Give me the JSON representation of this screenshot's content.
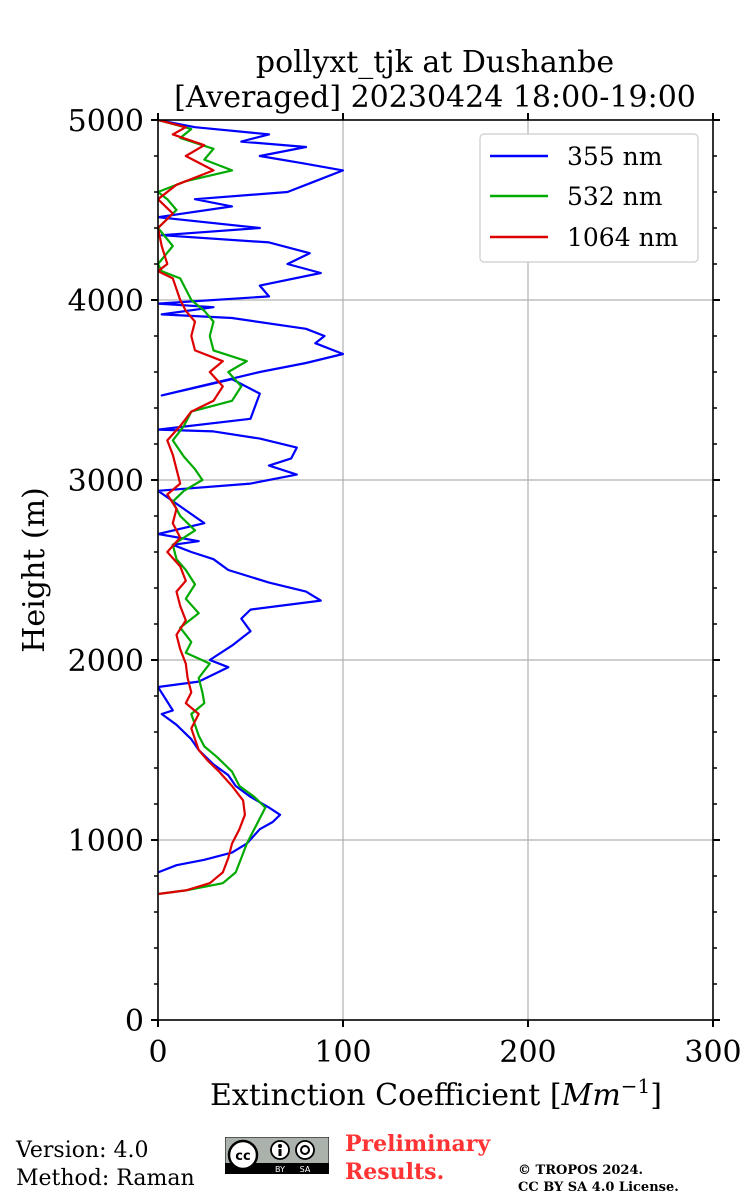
{
  "chart_data": {
    "type": "line",
    "title_line1": "pollyxt_tjk at Dushanbe",
    "title_line2": "[Averaged] 20230424 18:00-19:00",
    "xlabel": "Extinction Coefficient [",
    "xlabel_unit": "Mm",
    "xlabel_exp": "−1",
    "xlabel_close": "]",
    "ylabel": "Height (m)",
    "xlim": [
      0,
      300
    ],
    "ylim": [
      0,
      5000
    ],
    "x_ticks": [
      "0",
      "100",
      "200",
      "300"
    ],
    "x_tick_values": [
      0,
      100,
      200,
      300
    ],
    "y_ticks": [
      "0",
      "1000",
      "2000",
      "3000",
      "4000",
      "5000"
    ],
    "y_tick_values": [
      0,
      1000,
      2000,
      3000,
      4000,
      5000
    ],
    "grid": true,
    "legend_position": "top-right",
    "series": [
      {
        "name": "355 nm",
        "color": "#0000ff",
        "points": [
          [
            0,
            820
          ],
          [
            10,
            860
          ],
          [
            25,
            890
          ],
          [
            40,
            930
          ],
          [
            48,
            980
          ],
          [
            55,
            1060
          ],
          [
            62,
            1100
          ],
          [
            66,
            1140
          ],
          [
            60,
            1180
          ],
          [
            50,
            1240
          ],
          [
            42,
            1300
          ],
          [
            38,
            1360
          ],
          [
            30,
            1420
          ],
          [
            22,
            1500
          ],
          [
            18,
            1560
          ],
          [
            10,
            1640
          ],
          [
            2,
            1700
          ],
          [
            8,
            1720
          ],
          [
            0,
            1850
          ],
          [
            22,
            1880
          ],
          [
            38,
            1960
          ],
          [
            28,
            2000
          ],
          [
            40,
            2080
          ],
          [
            50,
            2160
          ],
          [
            45,
            2230
          ],
          [
            50,
            2280
          ],
          [
            88,
            2330
          ],
          [
            80,
            2380
          ],
          [
            60,
            2430
          ],
          [
            38,
            2500
          ],
          [
            30,
            2560
          ],
          [
            18,
            2600
          ],
          [
            8,
            2640
          ],
          [
            22,
            2660
          ],
          [
            0,
            2700
          ],
          [
            25,
            2760
          ],
          [
            0,
            2940
          ],
          [
            50,
            2980
          ],
          [
            75,
            3030
          ],
          [
            60,
            3080
          ],
          [
            72,
            3120
          ],
          [
            75,
            3180
          ],
          [
            55,
            3230
          ],
          [
            30,
            3270
          ],
          [
            0,
            3280
          ],
          [
            50,
            3340
          ],
          [
            55,
            3480
          ],
          [
            40,
            3560
          ],
          [
            2,
            3470
          ],
          [
            55,
            3600
          ],
          [
            80,
            3650
          ],
          [
            100,
            3700
          ],
          [
            85,
            3760
          ],
          [
            90,
            3800
          ],
          [
            80,
            3840
          ],
          [
            40,
            3900
          ],
          [
            2,
            3920
          ],
          [
            30,
            3960
          ],
          [
            0,
            3980
          ],
          [
            60,
            4020
          ],
          [
            55,
            4080
          ],
          [
            88,
            4150
          ],
          [
            70,
            4200
          ],
          [
            82,
            4260
          ],
          [
            60,
            4320
          ],
          [
            2,
            4360
          ],
          [
            55,
            4400
          ],
          [
            0,
            4460
          ],
          [
            40,
            4520
          ],
          [
            20,
            4560
          ],
          [
            70,
            4600
          ],
          [
            85,
            4660
          ],
          [
            100,
            4720
          ],
          [
            78,
            4760
          ],
          [
            55,
            4800
          ],
          [
            80,
            4850
          ],
          [
            45,
            4880
          ],
          [
            60,
            4920
          ],
          [
            20,
            4960
          ],
          [
            0,
            5000
          ]
        ]
      },
      {
        "name": "532 nm",
        "color": "#00aa00",
        "points": [
          [
            0,
            700
          ],
          [
            15,
            720
          ],
          [
            35,
            760
          ],
          [
            42,
            820
          ],
          [
            45,
            900
          ],
          [
            48,
            980
          ],
          [
            52,
            1060
          ],
          [
            55,
            1120
          ],
          [
            58,
            1180
          ],
          [
            52,
            1240
          ],
          [
            44,
            1300
          ],
          [
            40,
            1380
          ],
          [
            32,
            1460
          ],
          [
            25,
            1520
          ],
          [
            22,
            1580
          ],
          [
            20,
            1640
          ],
          [
            18,
            1700
          ],
          [
            25,
            1760
          ],
          [
            24,
            1820
          ],
          [
            22,
            1900
          ],
          [
            28,
            1980
          ],
          [
            15,
            2040
          ],
          [
            18,
            2100
          ],
          [
            12,
            2180
          ],
          [
            22,
            2260
          ],
          [
            15,
            2340
          ],
          [
            20,
            2420
          ],
          [
            15,
            2500
          ],
          [
            10,
            2560
          ],
          [
            8,
            2640
          ],
          [
            20,
            2720
          ],
          [
            12,
            2800
          ],
          [
            8,
            2880
          ],
          [
            14,
            2940
          ],
          [
            24,
            3000
          ],
          [
            20,
            3060
          ],
          [
            14,
            3130
          ],
          [
            8,
            3220
          ],
          [
            14,
            3300
          ],
          [
            18,
            3380
          ],
          [
            40,
            3440
          ],
          [
            45,
            3520
          ],
          [
            38,
            3600
          ],
          [
            48,
            3660
          ],
          [
            30,
            3720
          ],
          [
            28,
            3800
          ],
          [
            30,
            3880
          ],
          [
            25,
            3940
          ],
          [
            18,
            4000
          ],
          [
            15,
            4060
          ],
          [
            12,
            4120
          ],
          [
            2,
            4160
          ],
          [
            0,
            4200
          ],
          [
            8,
            4300
          ],
          [
            0,
            4400
          ],
          [
            10,
            4500
          ],
          [
            5,
            4560
          ],
          [
            0,
            4600
          ],
          [
            15,
            4660
          ],
          [
            40,
            4720
          ],
          [
            25,
            4780
          ],
          [
            30,
            4840
          ],
          [
            12,
            4900
          ],
          [
            18,
            4950
          ],
          [
            0,
            5000
          ]
        ]
      },
      {
        "name": "1064 nm",
        "color": "#dd0000",
        "points": [
          [
            0,
            700
          ],
          [
            15,
            720
          ],
          [
            28,
            760
          ],
          [
            35,
            820
          ],
          [
            38,
            900
          ],
          [
            40,
            980
          ],
          [
            44,
            1060
          ],
          [
            47,
            1140
          ],
          [
            46,
            1220
          ],
          [
            40,
            1300
          ],
          [
            33,
            1380
          ],
          [
            27,
            1440
          ],
          [
            22,
            1500
          ],
          [
            20,
            1560
          ],
          [
            18,
            1620
          ],
          [
            22,
            1700
          ],
          [
            15,
            1760
          ],
          [
            18,
            1820
          ],
          [
            16,
            1900
          ],
          [
            15,
            1980
          ],
          [
            12,
            2060
          ],
          [
            10,
            2140
          ],
          [
            15,
            2220
          ],
          [
            12,
            2300
          ],
          [
            10,
            2380
          ],
          [
            15,
            2440
          ],
          [
            12,
            2520
          ],
          [
            5,
            2600
          ],
          [
            12,
            2680
          ],
          [
            8,
            2760
          ],
          [
            10,
            2840
          ],
          [
            5,
            2920
          ],
          [
            12,
            2980
          ],
          [
            10,
            3060
          ],
          [
            8,
            3140
          ],
          [
            5,
            3220
          ],
          [
            12,
            3300
          ],
          [
            18,
            3380
          ],
          [
            30,
            3440
          ],
          [
            35,
            3520
          ],
          [
            28,
            3600
          ],
          [
            35,
            3660
          ],
          [
            20,
            3720
          ],
          [
            18,
            3800
          ],
          [
            20,
            3880
          ],
          [
            15,
            3940
          ],
          [
            12,
            4000
          ],
          [
            10,
            4060
          ],
          [
            8,
            4120
          ],
          [
            0,
            4160
          ],
          [
            5,
            4200
          ],
          [
            2,
            4300
          ],
          [
            0,
            4400
          ],
          [
            8,
            4480
          ],
          [
            0,
            4560
          ],
          [
            10,
            4640
          ],
          [
            30,
            4720
          ],
          [
            15,
            4800
          ],
          [
            25,
            4860
          ],
          [
            8,
            4920
          ],
          [
            15,
            4960
          ],
          [
            0,
            5000
          ]
        ]
      }
    ]
  },
  "footer": {
    "version": "Version: 4.0",
    "method": "Method: Raman",
    "preliminary_line1": "Preliminary",
    "preliminary_line2": "Results.",
    "copyright_line1": "© TROPOS 2024.",
    "copyright_line2": "CC BY SA 4.0 License.",
    "cc_label": "cc",
    "cc_by": "BY",
    "cc_sa": "SA"
  }
}
